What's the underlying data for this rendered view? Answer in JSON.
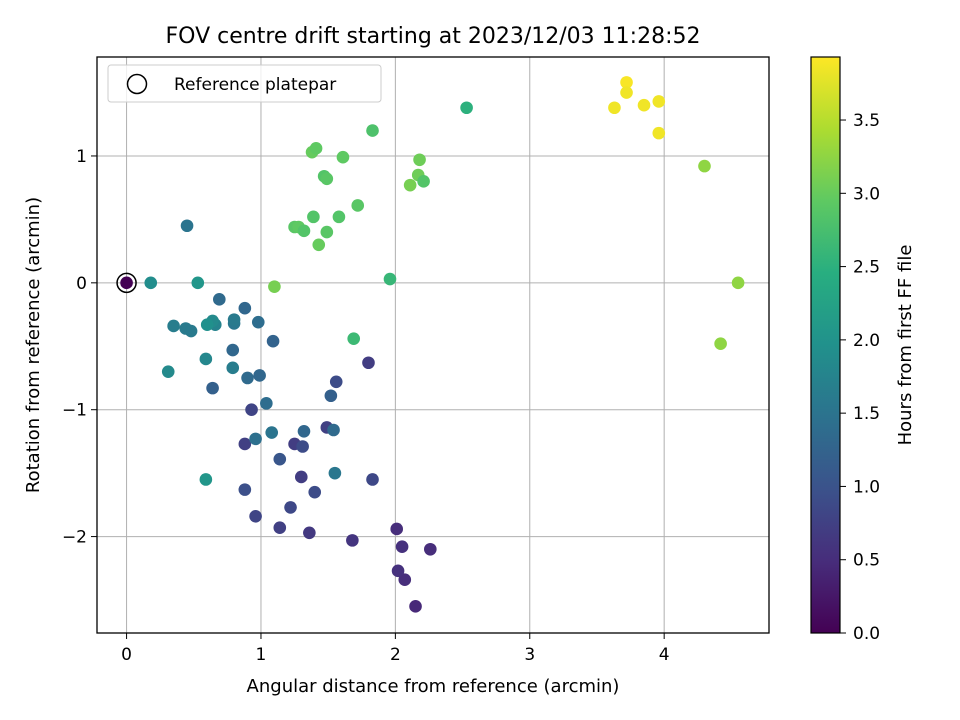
{
  "chart_data": {
    "type": "scatter",
    "title": "FOV centre drift starting at 2023/12/03 11:28:52",
    "xlabel": "Angular distance from reference (arcmin)",
    "ylabel": "Rotation from reference (arcmin)",
    "xlim": [
      -0.22,
      4.78
    ],
    "ylim": [
      -2.76,
      1.78
    ],
    "xticks": [
      0,
      1,
      2,
      3,
      4
    ],
    "yticks": [
      -2,
      -1,
      0,
      1
    ],
    "grid": true,
    "legend": {
      "position": "top-left",
      "entries": [
        "Reference platepar"
      ]
    },
    "reference_point": {
      "label": "Reference platepar",
      "x": 0,
      "y": 0
    },
    "colorbar": {
      "label": "Hours from first FF file",
      "colormap": "viridis",
      "range": [
        0,
        3.93
      ],
      "ticks": [
        "0.0",
        "0.5",
        "1.0",
        "1.5",
        "2.0",
        "2.5",
        "3.0",
        "3.5"
      ]
    },
    "points": [
      {
        "x": 0.0,
        "y": 0.0,
        "c": 0.0
      },
      {
        "x": 2.15,
        "y": -2.55,
        "c": 0.45
      },
      {
        "x": 2.07,
        "y": -2.34,
        "c": 0.5
      },
      {
        "x": 2.02,
        "y": -2.27,
        "c": 0.55
      },
      {
        "x": 2.05,
        "y": -2.08,
        "c": 0.55
      },
      {
        "x": 2.26,
        "y": -2.1,
        "c": 0.5
      },
      {
        "x": 2.01,
        "y": -1.94,
        "c": 0.5
      },
      {
        "x": 1.68,
        "y": -2.03,
        "c": 0.6
      },
      {
        "x": 1.36,
        "y": -1.97,
        "c": 0.65
      },
      {
        "x": 1.14,
        "y": -1.93,
        "c": 0.75
      },
      {
        "x": 0.96,
        "y": -1.84,
        "c": 0.8
      },
      {
        "x": 1.22,
        "y": -1.77,
        "c": 0.85
      },
      {
        "x": 0.88,
        "y": -1.63,
        "c": 0.95
      },
      {
        "x": 1.4,
        "y": -1.65,
        "c": 0.9
      },
      {
        "x": 1.83,
        "y": -1.55,
        "c": 0.85
      },
      {
        "x": 1.3,
        "y": -1.53,
        "c": 0.7
      },
      {
        "x": 1.25,
        "y": -1.27,
        "c": 0.7
      },
      {
        "x": 0.88,
        "y": -1.27,
        "c": 0.75
      },
      {
        "x": 1.49,
        "y": -1.14,
        "c": 0.75
      },
      {
        "x": 0.93,
        "y": -1.0,
        "c": 0.8
      },
      {
        "x": 1.31,
        "y": -1.29,
        "c": 0.9
      },
      {
        "x": 1.14,
        "y": -1.39,
        "c": 1.05
      },
      {
        "x": 1.8,
        "y": -0.63,
        "c": 0.7
      },
      {
        "x": 1.56,
        "y": -0.78,
        "c": 0.9
      },
      {
        "x": 1.52,
        "y": -0.89,
        "c": 1.2
      },
      {
        "x": 1.32,
        "y": -1.17,
        "c": 1.3
      },
      {
        "x": 1.54,
        "y": -1.16,
        "c": 1.35
      },
      {
        "x": 1.55,
        "y": -1.5,
        "c": 1.55
      },
      {
        "x": 1.08,
        "y": -1.18,
        "c": 1.5
      },
      {
        "x": 0.96,
        "y": -1.23,
        "c": 1.45
      },
      {
        "x": 1.04,
        "y": -0.95,
        "c": 1.4
      },
      {
        "x": 0.9,
        "y": -0.75,
        "c": 1.35
      },
      {
        "x": 0.99,
        "y": -0.73,
        "c": 1.3
      },
      {
        "x": 0.64,
        "y": -0.83,
        "c": 1.2
      },
      {
        "x": 0.79,
        "y": -0.53,
        "c": 1.3
      },
      {
        "x": 1.09,
        "y": -0.46,
        "c": 1.25
      },
      {
        "x": 0.98,
        "y": -0.31,
        "c": 1.4
      },
      {
        "x": 0.88,
        "y": -0.2,
        "c": 1.3
      },
      {
        "x": 0.69,
        "y": -0.13,
        "c": 1.35
      },
      {
        "x": 0.45,
        "y": 0.45,
        "c": 1.5
      },
      {
        "x": 0.8,
        "y": -0.32,
        "c": 1.55
      },
      {
        "x": 0.8,
        "y": -0.29,
        "c": 1.6
      },
      {
        "x": 0.79,
        "y": -0.67,
        "c": 1.65
      },
      {
        "x": 0.59,
        "y": -0.6,
        "c": 1.8
      },
      {
        "x": 0.35,
        "y": -0.34,
        "c": 1.65
      },
      {
        "x": 0.44,
        "y": -0.36,
        "c": 1.6
      },
      {
        "x": 0.48,
        "y": -0.38,
        "c": 1.6
      },
      {
        "x": 0.66,
        "y": -0.33,
        "c": 1.75
      },
      {
        "x": 0.64,
        "y": -0.3,
        "c": 1.85
      },
      {
        "x": 0.6,
        "y": -0.33,
        "c": 1.95
      },
      {
        "x": 0.31,
        "y": -0.7,
        "c": 1.85
      },
      {
        "x": 0.18,
        "y": 0.0,
        "c": 1.9
      },
      {
        "x": 0.53,
        "y": 0.0,
        "c": 2.05
      },
      {
        "x": 0.59,
        "y": -1.55,
        "c": 2.05
      },
      {
        "x": 1.69,
        "y": -0.44,
        "c": 2.65
      },
      {
        "x": 1.96,
        "y": 0.03,
        "c": 2.6
      },
      {
        "x": 2.53,
        "y": 1.38,
        "c": 2.5
      },
      {
        "x": 1.1,
        "y": -0.03,
        "c": 3.1
      },
      {
        "x": 1.25,
        "y": 0.44,
        "c": 2.9
      },
      {
        "x": 1.28,
        "y": 0.44,
        "c": 2.95
      },
      {
        "x": 1.32,
        "y": 0.41,
        "c": 2.85
      },
      {
        "x": 1.43,
        "y": 0.3,
        "c": 3.0
      },
      {
        "x": 1.39,
        "y": 0.52,
        "c": 2.85
      },
      {
        "x": 1.49,
        "y": 0.4,
        "c": 2.9
      },
      {
        "x": 1.58,
        "y": 0.52,
        "c": 2.85
      },
      {
        "x": 1.72,
        "y": 0.61,
        "c": 2.9
      },
      {
        "x": 1.38,
        "y": 1.03,
        "c": 3.0
      },
      {
        "x": 1.41,
        "y": 1.06,
        "c": 2.95
      },
      {
        "x": 1.61,
        "y": 0.99,
        "c": 2.95
      },
      {
        "x": 1.83,
        "y": 1.2,
        "c": 2.8
      },
      {
        "x": 1.47,
        "y": 0.84,
        "c": 2.85
      },
      {
        "x": 1.49,
        "y": 0.82,
        "c": 2.9
      },
      {
        "x": 2.18,
        "y": 0.97,
        "c": 3.05
      },
      {
        "x": 2.17,
        "y": 0.85,
        "c": 3.05
      },
      {
        "x": 2.21,
        "y": 0.8,
        "c": 2.85
      },
      {
        "x": 2.11,
        "y": 0.77,
        "c": 3.1
      },
      {
        "x": 4.3,
        "y": 0.92,
        "c": 3.25
      },
      {
        "x": 4.55,
        "y": 0.0,
        "c": 3.25
      },
      {
        "x": 4.42,
        "y": -0.48,
        "c": 3.25
      },
      {
        "x": 3.63,
        "y": 1.38,
        "c": 3.85
      },
      {
        "x": 3.72,
        "y": 1.58,
        "c": 3.9
      },
      {
        "x": 3.72,
        "y": 1.5,
        "c": 3.85
      },
      {
        "x": 3.85,
        "y": 1.4,
        "c": 3.85
      },
      {
        "x": 3.96,
        "y": 1.43,
        "c": 3.85
      },
      {
        "x": 3.96,
        "y": 1.18,
        "c": 3.85
      }
    ]
  }
}
